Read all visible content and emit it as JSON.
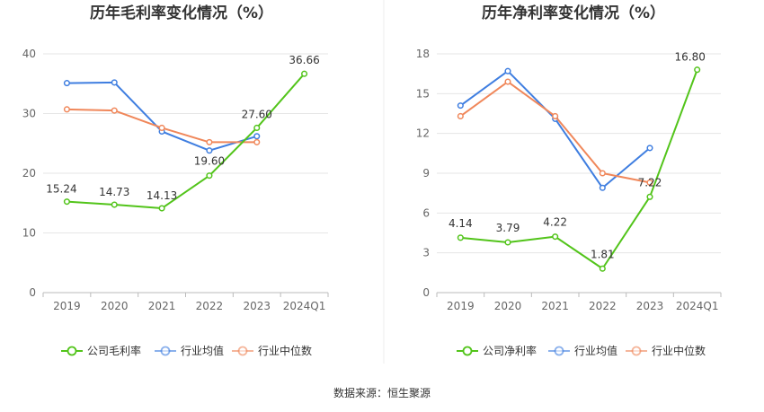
{
  "source": "数据来源：恒生聚源",
  "chart_data": [
    {
      "type": "line",
      "title": "历年毛利率变化情况（%）",
      "categories": [
        "2019",
        "2020",
        "2021",
        "2022",
        "2023",
        "2024Q1"
      ],
      "ylim": [
        0,
        40
      ],
      "yticks": [
        0,
        10,
        20,
        30,
        40
      ],
      "grid": true,
      "legend_position": "bottom",
      "series": [
        {
          "name": "公司毛利率",
          "color": "#52c41a",
          "values": [
            15.24,
            14.73,
            14.13,
            19.6,
            27.6,
            36.66
          ],
          "labels": [
            "15.24",
            "14.73",
            "14.13",
            "19.60",
            "27.60",
            "36.66"
          ]
        },
        {
          "name": "行业均值",
          "color": "#3f7ee0",
          "values": [
            35.1,
            35.2,
            27.0,
            23.8,
            26.2,
            null
          ]
        },
        {
          "name": "行业中位数",
          "color": "#f0875a",
          "values": [
            30.7,
            30.5,
            27.6,
            25.2,
            25.2,
            null
          ]
        }
      ]
    },
    {
      "type": "line",
      "title": "历年净利率变化情况（%）",
      "categories": [
        "2019",
        "2020",
        "2021",
        "2022",
        "2023",
        "2024Q1"
      ],
      "ylim": [
        0,
        18
      ],
      "yticks": [
        0,
        3,
        6,
        9,
        12,
        15,
        18
      ],
      "grid": true,
      "legend_position": "bottom",
      "series": [
        {
          "name": "公司净利率",
          "color": "#52c41a",
          "values": [
            4.14,
            3.79,
            4.22,
            1.81,
            7.22,
            16.8
          ],
          "labels": [
            "4.14",
            "3.79",
            "4.22",
            "1.81",
            "7.22",
            "16.80"
          ]
        },
        {
          "name": "行业均值",
          "color": "#3f7ee0",
          "values": [
            14.1,
            16.7,
            13.1,
            7.9,
            10.9,
            null
          ]
        },
        {
          "name": "行业中位数",
          "color": "#f0875a",
          "values": [
            13.3,
            15.9,
            13.3,
            9.0,
            8.3,
            null
          ]
        }
      ]
    }
  ]
}
